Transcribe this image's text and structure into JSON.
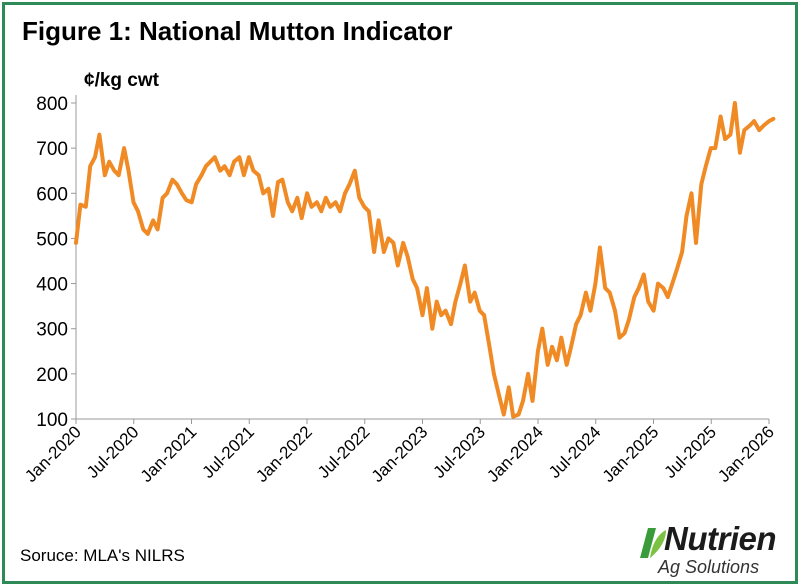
{
  "title": "Figure 1: National Mutton Indicator",
  "source": "Soruce: MLA's NILRS",
  "logo": {
    "name": "Nutrien",
    "sub": "Ag Solutions",
    "mark_color": "#3a9b3a",
    "icon": "leaf-mark-icon"
  },
  "colors": {
    "line": "#f08a24",
    "frame": "#2e8b57",
    "axis": "#999999"
  },
  "chart_data": {
    "type": "line",
    "title": "Figure 1: National Mutton Indicator",
    "ylabel": "¢/kg cwt",
    "xlabel": "",
    "ylim": [
      100,
      800
    ],
    "yticks": [
      100,
      200,
      300,
      400,
      500,
      600,
      700,
      800
    ],
    "xticks": [
      "Jan-2020",
      "Jul-2020",
      "Jan-2021",
      "Jul-2021",
      "Jan-2022",
      "Jul-2022",
      "Jan-2023",
      "Jul-2023",
      "Jan-2024",
      "Jul-2024",
      "Jan-2025",
      "Jul-2025",
      "Jan-2026"
    ],
    "grid": false,
    "legend": "none",
    "series": [
      {
        "values": [
          [
            "2020-01-01",
            490
          ],
          [
            "2020-01-15",
            575
          ],
          [
            "2020-02-01",
            570
          ],
          [
            "2020-02-15",
            660
          ],
          [
            "2020-03-01",
            680
          ],
          [
            "2020-03-15",
            730
          ],
          [
            "2020-04-01",
            640
          ],
          [
            "2020-04-15",
            670
          ],
          [
            "2020-05-01",
            650
          ],
          [
            "2020-05-15",
            640
          ],
          [
            "2020-06-01",
            700
          ],
          [
            "2020-06-15",
            650
          ],
          [
            "2020-07-01",
            580
          ],
          [
            "2020-07-15",
            560
          ],
          [
            "2020-08-01",
            520
          ],
          [
            "2020-08-15",
            510
          ],
          [
            "2020-09-01",
            540
          ],
          [
            "2020-09-15",
            520
          ],
          [
            "2020-10-01",
            590
          ],
          [
            "2020-10-15",
            600
          ],
          [
            "2020-11-01",
            630
          ],
          [
            "2020-11-15",
            620
          ],
          [
            "2020-12-01",
            600
          ],
          [
            "2020-12-15",
            585
          ],
          [
            "2021-01-01",
            580
          ],
          [
            "2021-01-15",
            620
          ],
          [
            "2021-02-01",
            640
          ],
          [
            "2021-02-15",
            660
          ],
          [
            "2021-03-01",
            670
          ],
          [
            "2021-03-15",
            680
          ],
          [
            "2021-04-01",
            650
          ],
          [
            "2021-04-15",
            660
          ],
          [
            "2021-05-01",
            640
          ],
          [
            "2021-05-15",
            670
          ],
          [
            "2021-06-01",
            680
          ],
          [
            "2021-06-15",
            640
          ],
          [
            "2021-07-01",
            680
          ],
          [
            "2021-07-15",
            650
          ],
          [
            "2021-08-01",
            640
          ],
          [
            "2021-08-15",
            600
          ],
          [
            "2021-09-01",
            610
          ],
          [
            "2021-09-15",
            550
          ],
          [
            "2021-10-01",
            625
          ],
          [
            "2021-10-15",
            630
          ],
          [
            "2021-11-01",
            580
          ],
          [
            "2021-11-15",
            560
          ],
          [
            "2021-12-01",
            590
          ],
          [
            "2021-12-15",
            545
          ],
          [
            "2022-01-01",
            600
          ],
          [
            "2022-01-15",
            570
          ],
          [
            "2022-02-01",
            580
          ],
          [
            "2022-02-15",
            560
          ],
          [
            "2022-03-01",
            590
          ],
          [
            "2022-03-15",
            570
          ],
          [
            "2022-04-01",
            580
          ],
          [
            "2022-04-15",
            560
          ],
          [
            "2022-05-01",
            600
          ],
          [
            "2022-05-15",
            620
          ],
          [
            "2022-06-01",
            650
          ],
          [
            "2022-06-15",
            590
          ],
          [
            "2022-07-01",
            570
          ],
          [
            "2022-07-15",
            560
          ],
          [
            "2022-08-01",
            470
          ],
          [
            "2022-08-15",
            540
          ],
          [
            "2022-09-01",
            470
          ],
          [
            "2022-09-15",
            500
          ],
          [
            "2022-10-01",
            490
          ],
          [
            "2022-10-15",
            440
          ],
          [
            "2022-11-01",
            490
          ],
          [
            "2022-11-15",
            460
          ],
          [
            "2022-12-01",
            410
          ],
          [
            "2022-12-15",
            390
          ],
          [
            "2023-01-01",
            330
          ],
          [
            "2023-01-15",
            390
          ],
          [
            "2023-02-01",
            300
          ],
          [
            "2023-02-15",
            360
          ],
          [
            "2023-03-01",
            330
          ],
          [
            "2023-03-15",
            340
          ],
          [
            "2023-04-01",
            310
          ],
          [
            "2023-04-15",
            360
          ],
          [
            "2023-05-01",
            400
          ],
          [
            "2023-05-15",
            440
          ],
          [
            "2023-06-01",
            360
          ],
          [
            "2023-06-15",
            380
          ],
          [
            "2023-07-01",
            340
          ],
          [
            "2023-07-15",
            330
          ],
          [
            "2023-08-01",
            260
          ],
          [
            "2023-08-15",
            200
          ],
          [
            "2023-09-01",
            150
          ],
          [
            "2023-09-15",
            110
          ],
          [
            "2023-10-01",
            170
          ],
          [
            "2023-10-15",
            105
          ],
          [
            "2023-11-01",
            110
          ],
          [
            "2023-11-15",
            140
          ],
          [
            "2023-12-01",
            200
          ],
          [
            "2023-12-15",
            140
          ],
          [
            "2024-01-01",
            250
          ],
          [
            "2024-01-15",
            300
          ],
          [
            "2024-02-01",
            220
          ],
          [
            "2024-02-15",
            260
          ],
          [
            "2024-03-01",
            230
          ],
          [
            "2024-03-15",
            280
          ],
          [
            "2024-04-01",
            220
          ],
          [
            "2024-04-15",
            260
          ],
          [
            "2024-05-01",
            310
          ],
          [
            "2024-05-15",
            330
          ],
          [
            "2024-06-01",
            380
          ],
          [
            "2024-06-15",
            340
          ],
          [
            "2024-07-01",
            400
          ],
          [
            "2024-07-15",
            480
          ],
          [
            "2024-08-01",
            390
          ],
          [
            "2024-08-15",
            380
          ],
          [
            "2024-09-01",
            340
          ],
          [
            "2024-09-15",
            280
          ],
          [
            "2024-10-01",
            290
          ],
          [
            "2024-10-15",
            320
          ],
          [
            "2024-11-01",
            370
          ],
          [
            "2024-11-15",
            390
          ],
          [
            "2024-12-01",
            420
          ],
          [
            "2024-12-15",
            360
          ],
          [
            "2025-01-01",
            340
          ],
          [
            "2025-01-15",
            400
          ],
          [
            "2025-02-01",
            390
          ],
          [
            "2025-02-15",
            370
          ],
          [
            "2025-03-01",
            400
          ],
          [
            "2025-03-15",
            430
          ],
          [
            "2025-04-01",
            470
          ],
          [
            "2025-04-15",
            550
          ],
          [
            "2025-05-01",
            600
          ],
          [
            "2025-05-15",
            490
          ],
          [
            "2025-06-01",
            620
          ],
          [
            "2025-06-15",
            660
          ],
          [
            "2025-07-01",
            700
          ],
          [
            "2025-07-15",
            700
          ],
          [
            "2025-08-01",
            770
          ],
          [
            "2025-08-15",
            720
          ],
          [
            "2025-09-01",
            730
          ],
          [
            "2025-09-15",
            800
          ],
          [
            "2025-10-01",
            690
          ],
          [
            "2025-10-15",
            740
          ],
          [
            "2025-11-01",
            750
          ],
          [
            "2025-11-15",
            760
          ],
          [
            "2025-12-01",
            740
          ],
          [
            "2025-12-15",
            750
          ],
          [
            "2026-01-01",
            760
          ],
          [
            "2026-01-15",
            765
          ]
        ]
      }
    ]
  }
}
